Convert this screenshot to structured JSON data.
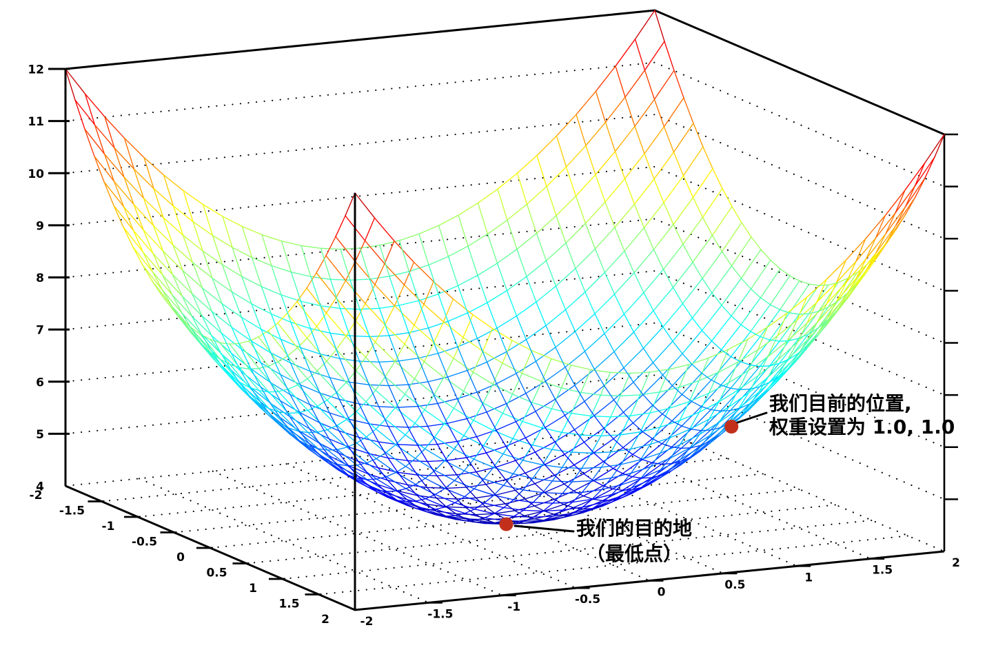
{
  "chart_data": {
    "type": "surface-wireframe",
    "title": "",
    "surface": {
      "formula": "z = 4 + x^2 + y^2",
      "z_offset": 4,
      "x2_coeff": 1,
      "y2_coeff": 1
    },
    "x_range": [
      -2,
      2
    ],
    "y_range": [
      -2,
      2
    ],
    "z_range": [
      4,
      12
    ],
    "x_ticks": [
      "-2",
      "-1.5",
      "-1",
      "-0.5",
      "0",
      "0.5",
      "1",
      "1.5",
      "2"
    ],
    "y_ticks": [
      "-2",
      "-1.5",
      "-1",
      "-0.5",
      "0",
      "0.5",
      "1",
      "1.5",
      "2"
    ],
    "z_ticks": [
      "4",
      "5",
      "6",
      "7",
      "8",
      "9",
      "10",
      "11",
      "12"
    ],
    "wall_grid_z_levels": [
      5,
      6,
      7,
      8,
      9,
      10,
      11
    ],
    "floor_grid_step": 0.5,
    "mesh_divisions": 30,
    "colormap": "jet",
    "legend": "none",
    "grid": "dotted walls and floor",
    "points": [
      {
        "name": "current-position",
        "x": 1.0,
        "y": 1.0,
        "z": 6.0,
        "label": "我们目前的位置, 权重设置为 1.0, 1.0"
      },
      {
        "name": "destination",
        "x": 0.0,
        "y": 0.0,
        "z": 4.0,
        "label": "我们的目的地（最低点）"
      }
    ]
  },
  "annotations": {
    "current": {
      "line1": "我们目前的位置,",
      "line2": "权重设置为 1.0, 1.0"
    },
    "destination": {
      "line1": "我们的目的地",
      "line2": "（最低点）"
    }
  },
  "colors": {
    "marker": "#c2301c",
    "frame": "#000000",
    "background": "#ffffff"
  }
}
